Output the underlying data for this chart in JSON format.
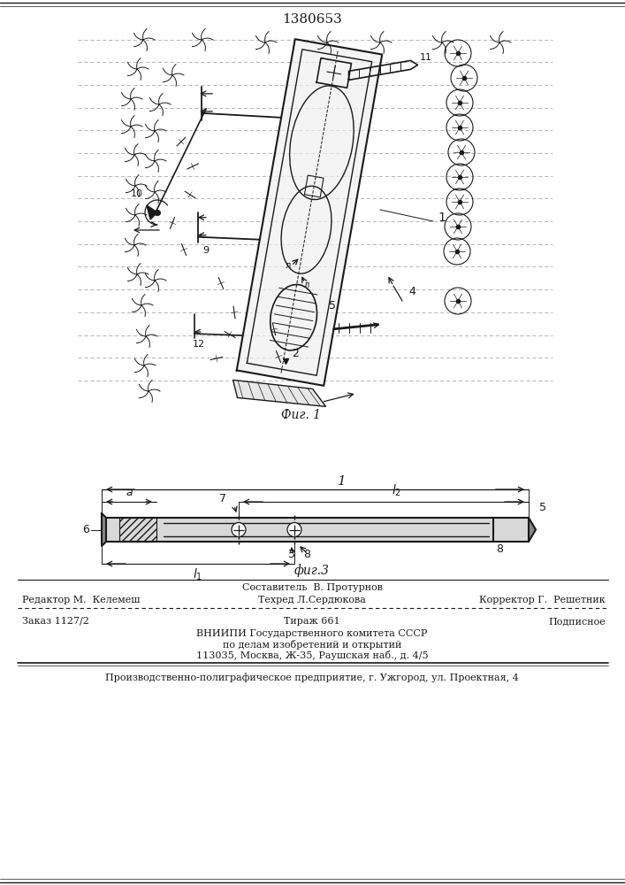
{
  "title": "1380653",
  "fig1_caption": "Фиг. 1",
  "fig3_caption": "фиг.3",
  "footer_line1": "Составитель  В. Протурнов",
  "footer_line2_left": "Редактор М.  Келемеш",
  "footer_line2_mid": "Техред Л.Сердюкова",
  "footer_line2_right": "Корректор Г.  Решетник",
  "footer_line3_left": "Заказ 1127/2",
  "footer_line3_mid": "Тираж 661",
  "footer_line3_right": "Подписное",
  "footer_line4": "ВНИИПИ Государственного комитета СССР",
  "footer_line5": "по делам изобретений и открытий",
  "footer_line6": "113035, Москва, Ж-35, Раушская наб., д. 4/5",
  "footer_line7": "Производственно-полиграфическое предприятие, г. Ужгород, ул. Проектная, 4",
  "bg_color": "#ffffff",
  "line_color": "#1a1a1a"
}
